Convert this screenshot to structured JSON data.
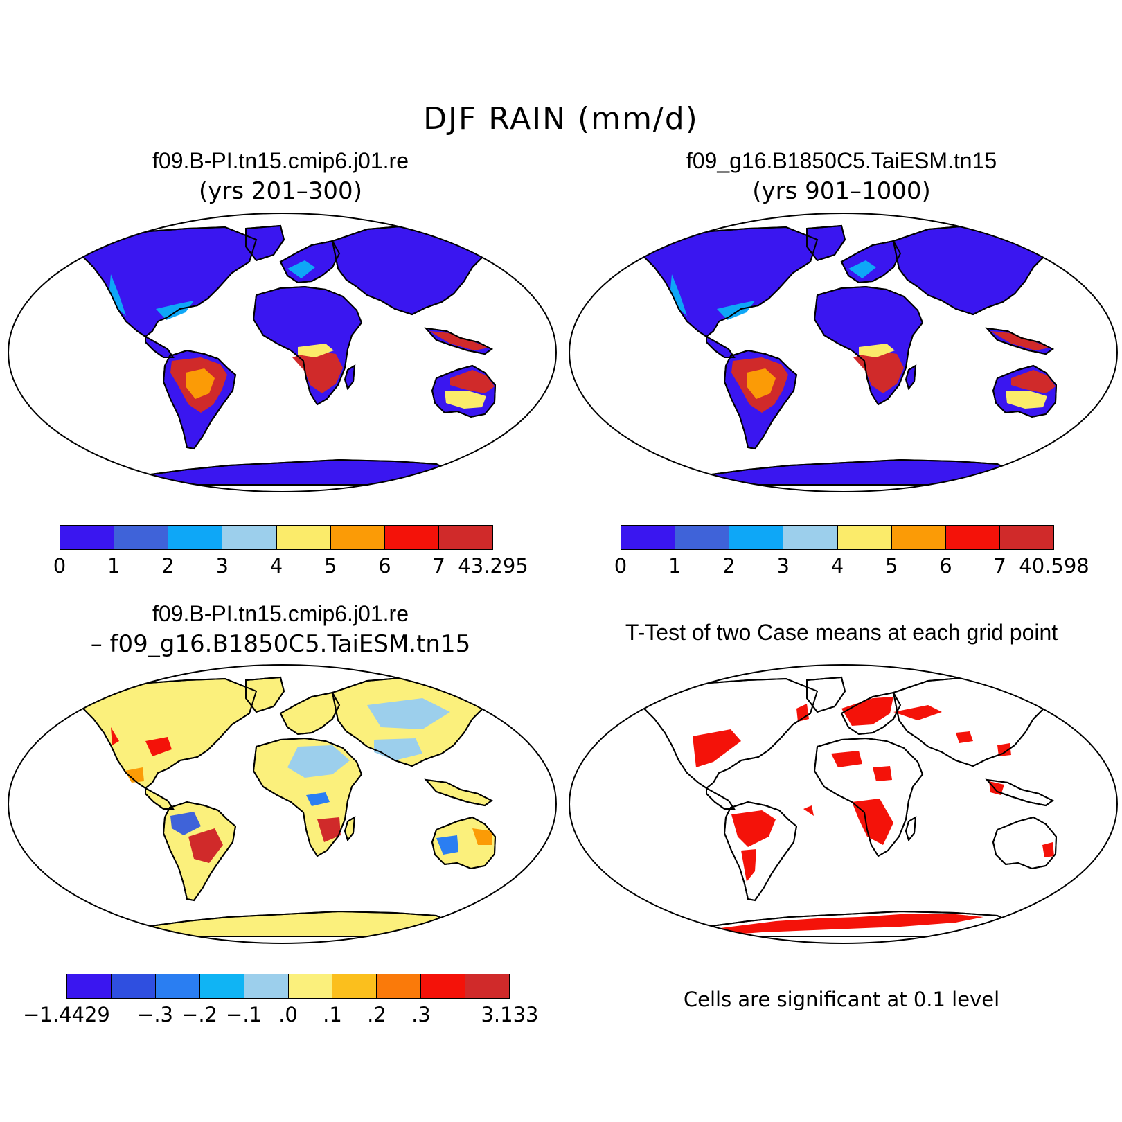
{
  "main_title": "DJF RAIN (mm/d)",
  "panels": [
    {
      "title": "f09.B-PI.tn15.cmip6.j01.re",
      "subtitle": "(yrs 201–300)"
    },
    {
      "title": "f09_g16.B1850C5.TaiESM.tn15",
      "subtitle": "(yrs 901–1000)"
    },
    {
      "title": "f09.B-PI.tn15.cmip6.j01.re",
      "subtitle": "– f09_g16.B1850C5.TaiESM.tn15"
    },
    {
      "title": "T-Test of two Case means at each grid point",
      "subtitle": ""
    }
  ],
  "colorbars": [
    {
      "labels": [
        "0",
        "1",
        "2",
        "3",
        "4",
        "5",
        "6",
        "7",
        "43.295"
      ],
      "colors": [
        "#3a16f0",
        "#3f63d9",
        "#0ea7f7",
        "#9ccfec",
        "#fbeb6a",
        "#fb9b06",
        "#f41209",
        "#d02a2a"
      ]
    },
    {
      "labels": [
        "0",
        "1",
        "2",
        "3",
        "4",
        "5",
        "6",
        "7",
        "40.598"
      ],
      "colors": [
        "#3a16f0",
        "#3f63d9",
        "#0ea7f7",
        "#9ccfec",
        "#fbeb6a",
        "#fb9b06",
        "#f41209",
        "#d02a2a"
      ]
    },
    {
      "labels": [
        "−1.4429",
        "",
        "−.3",
        "−.2",
        "−.1",
        ".0",
        ".1",
        ".2",
        ".3",
        "",
        "3.133"
      ],
      "colors": [
        "#3a16f0",
        "#2f4fe0",
        "#2a7ef2",
        "#10b4f4",
        "#9ccfec",
        "#fbf07c",
        "#fbbf1d",
        "#fa7a0a",
        "#f41209",
        "#d02a2a"
      ]
    }
  ],
  "significance_note": "Cells are significant at 0.1 level",
  "map_colors": {
    "dry": "#3a16f0",
    "wet": "#d02a2a",
    "significant": "#f41209",
    "diff_pos": "#fbf07c",
    "diff_neg": "#9ccfec"
  }
}
